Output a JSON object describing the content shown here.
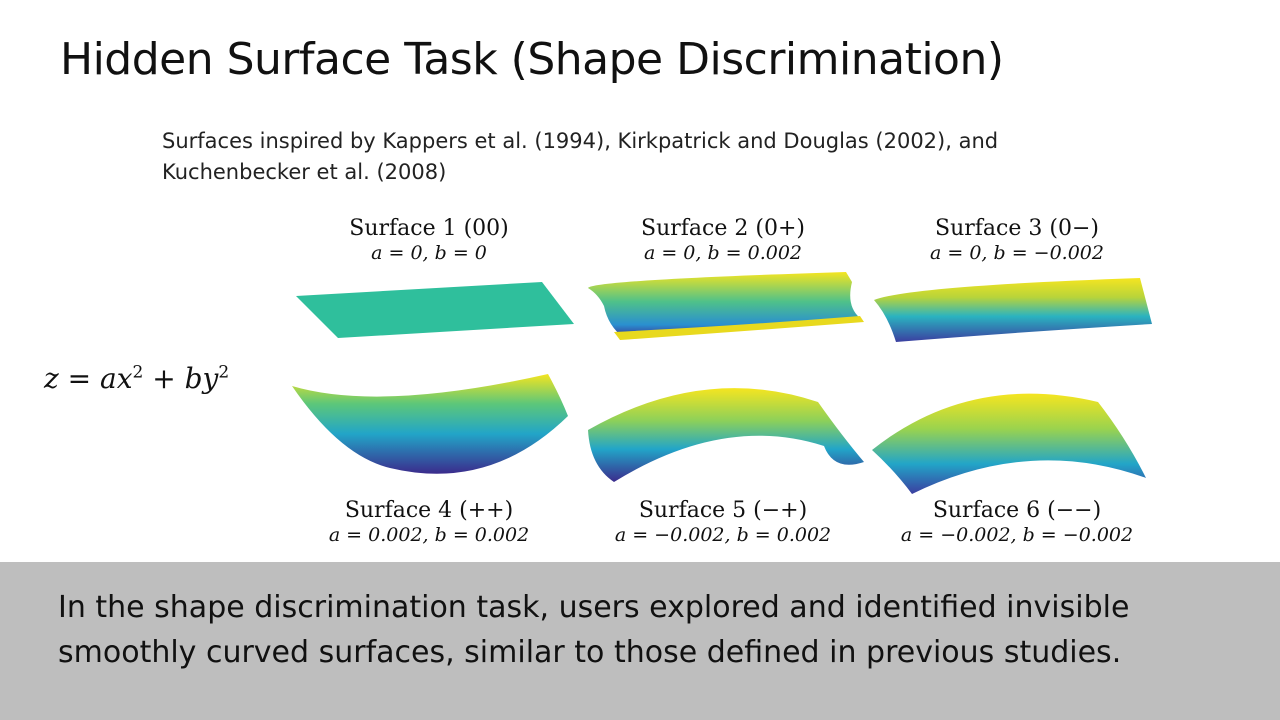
{
  "slide": {
    "title": "Hidden Surface Task (Shape Discrimination)",
    "subtitle": "Surfaces inspired by Kappers et al. (1994), Kirkpatrick and Douglas (2002), and Kuchenbecker et al. (2008)",
    "equation": {
      "lhs": "z = ax",
      "mid": " + by",
      "exp": "2"
    },
    "footer_text": "In the shape discrimination task, users explored and identified invisible smoothly curved surfaces, similar to those defined in previous studies."
  },
  "surfaces": [
    {
      "name": "Surface 1 (00)",
      "params": "a = 0, b = 0",
      "a": 0,
      "b": 0
    },
    {
      "name": "Surface 2 (0+)",
      "params": "a = 0, b = 0.002",
      "a": 0,
      "b": 0.002
    },
    {
      "name": "Surface 3 (0−)",
      "params": "a = 0, b = −0.002",
      "a": 0,
      "b": -0.002
    },
    {
      "name": "Surface 4 (++)",
      "params": "a = 0.002, b = 0.002",
      "a": 0.002,
      "b": 0.002
    },
    {
      "name": "Surface 5 (−+)",
      "params": "a = −0.002, b = 0.002",
      "a": -0.002,
      "b": 0.002
    },
    {
      "name": "Surface 6 (−−)",
      "params": "a = −0.002, b = −0.002",
      "a": -0.002,
      "b": -0.002
    }
  ],
  "colors": {
    "low": "#3b2b8c",
    "mid": "#22a5a0",
    "high": "#f5e520",
    "flat": "#2fbf9c",
    "footer_bg": "#bebebe"
  }
}
